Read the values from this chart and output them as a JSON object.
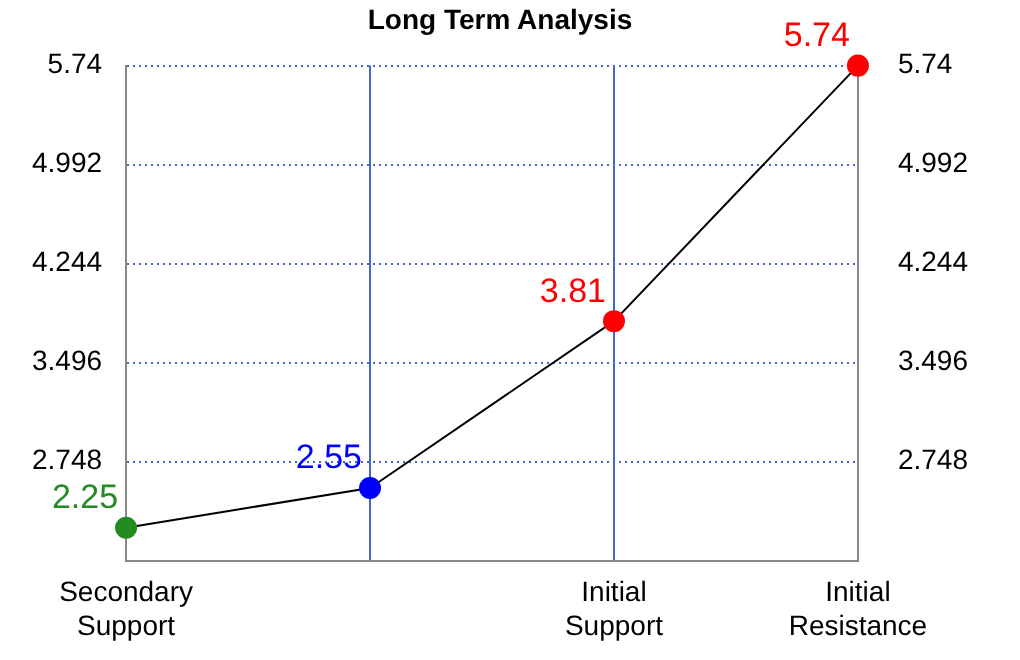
{
  "chart_data": {
    "type": "line",
    "title": "Long Term Analysis",
    "categories": [
      "Secondary Support",
      null,
      "Initial Support",
      "Initial Resistance"
    ],
    "series": [
      {
        "color": "#000000",
        "colors": [
          "#228b22",
          "#0000ff",
          "#ff0000",
          "#ff0000"
        ],
        "values": [
          2.25,
          2.55,
          3.81,
          5.74
        ]
      }
    ],
    "ylim": [
      2,
      5.74
    ],
    "yticks": [
      2.748,
      3.496,
      4.244,
      4.992,
      5.74
    ],
    "y2lim": [
      2,
      5.74
    ],
    "y2ticks": [
      2.748,
      3.496,
      4.244,
      4.992,
      5.74
    ],
    "grid": true,
    "marker": "circle",
    "line_style": "solid",
    "data_labels": true
  }
}
